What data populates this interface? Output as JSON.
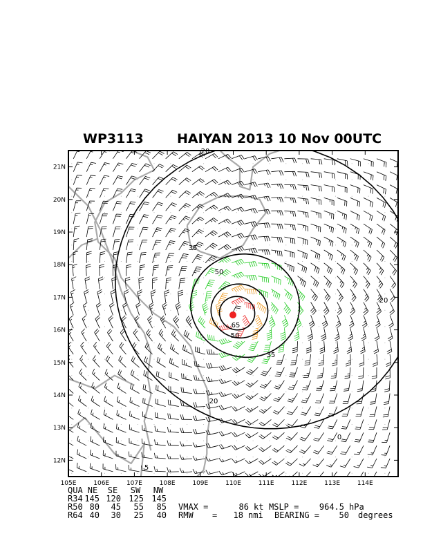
{
  "chart_data": {
    "type": "wind-barb-map",
    "title_id": "WP3113",
    "title_main": "HAIYAN 2013 10 Nov 00UTC",
    "lon_range": [
      105,
      115
    ],
    "lat_range": [
      11.5,
      21.5
    ],
    "x_ticks": [
      "105E",
      "106E",
      "107E",
      "108E",
      "109E",
      "110E",
      "111E",
      "112E",
      "113E",
      "114E"
    ],
    "y_ticks": [
      "12N",
      "13N",
      "14N",
      "15N",
      "16N",
      "17N",
      "18N",
      "19N",
      "20N",
      "21N"
    ],
    "center": {
      "lon": 110.0,
      "lat": 16.4
    },
    "contour_levels": [
      {
        "value": 20,
        "label": "20"
      },
      {
        "value": 35,
        "label": "35"
      },
      {
        "value": 50,
        "label": "50"
      },
      {
        "value": 65,
        "label": "65"
      }
    ],
    "other_labels": [
      "20",
      "20",
      "5",
      "0"
    ],
    "barb_colors": {
      "below34": "#000000",
      "r34": "#22cc22",
      "r50": "#ee9922",
      "r64": "#ee3333",
      "land": "#aaaaaa",
      "center_dot": "#ee2222"
    },
    "table": {
      "header": [
        "QUA",
        "NE",
        "SE",
        "SW",
        "NW"
      ],
      "rows": [
        {
          "name": "R34",
          "values": [
            "145",
            "120",
            "125",
            "145"
          ]
        },
        {
          "name": "R50",
          "values": [
            "80",
            "45",
            "55",
            "85"
          ]
        },
        {
          "name": "R64",
          "values": [
            "40",
            "30",
            "25",
            "40"
          ]
        }
      ]
    },
    "stats": {
      "vmax_label": "VMAX =",
      "vmax_value": "86",
      "vmax_unit": "kt",
      "mslp_label": "MSLP =",
      "mslp_value": "964.5",
      "mslp_unit": "hPa",
      "rmw_label": "RMW",
      "rmw_eq": "=",
      "rmw_value": "18",
      "rmw_unit": "nmi",
      "bearing_label": "BEARING =",
      "bearing_value": "50",
      "bearing_unit": "degrees"
    }
  }
}
